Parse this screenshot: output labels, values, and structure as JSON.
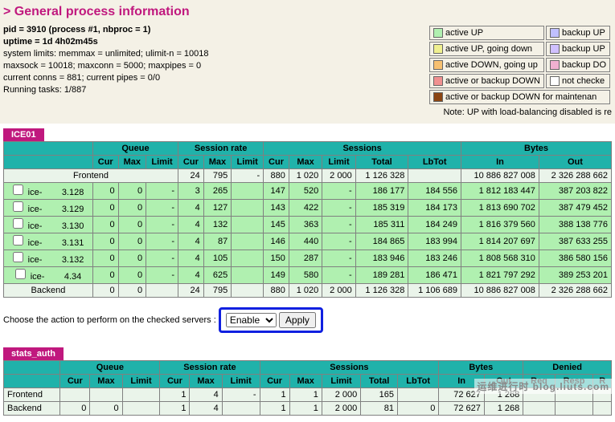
{
  "title": "> General process information",
  "info": {
    "pid_line": "pid = 3910 (process #1, nbproc = 1)",
    "uptime_line": "uptime = 1d 4h02m45s",
    "limits_line": "system limits: memmax = unlimited; ulimit-n = 10018",
    "sock_line": "maxsock = 10018; maxconn = 5000; maxpipes = 0",
    "conns_line": "current conns = 881; current pipes = 0/0",
    "tasks_line": "Running tasks: 1/887"
  },
  "legend": {
    "rows": [
      {
        "c1": "#b0f0b0",
        "l1": "active UP",
        "c2": "#c0c0ff",
        "l2": "backup UP"
      },
      {
        "c1": "#f0f090",
        "l1": "active UP, going down",
        "c2": "#d0c0ff",
        "l2": "backup UP"
      },
      {
        "c1": "#f7c070",
        "l1": "active DOWN, going up",
        "c2": "#f0b0d0",
        "l2": "backup DO"
      },
      {
        "c1": "#f09090",
        "l1": "active or backup DOWN",
        "c2": "#ffffff",
        "l2": "not checke"
      }
    ],
    "maint": {
      "color": "#8b4513",
      "label": "active or backup DOWN for maintenan"
    },
    "note": "Note: UP with load-balancing disabled is re"
  },
  "ice01": {
    "title": "ICE01",
    "group_headers": [
      "",
      "Queue",
      "Session rate",
      "Sessions",
      "Bytes"
    ],
    "sub_headers": [
      "",
      "Cur",
      "Max",
      "Limit",
      "Cur",
      "Max",
      "Limit",
      "Cur",
      "Max",
      "Limit",
      "Total",
      "LbTot",
      "In",
      "Out"
    ],
    "frontend": {
      "name": "Frontend",
      "srCur": "24",
      "srMax": "795",
      "srLim": "-",
      "sCur": "880",
      "sMax": "1 020",
      "sLim": "2 000",
      "sTot": "1 126 328",
      "lb": "",
      "bIn": "10 886 827 008",
      "bOut": "2 326 288 662"
    },
    "rows": [
      {
        "name": "ice-",
        "ip": "3.128",
        "qCur": "0",
        "qMax": "0",
        "qLim": "-",
        "srCur": "3",
        "srMax": "265",
        "srLim": "",
        "sCur": "147",
        "sMax": "520",
        "sLim": "-",
        "sTot": "186 177",
        "lb": "184 556",
        "bIn": "1 812 183 447",
        "bOut": "387 203 822"
      },
      {
        "name": "ice-",
        "ip": "3.129",
        "qCur": "0",
        "qMax": "0",
        "qLim": "-",
        "srCur": "4",
        "srMax": "127",
        "srLim": "",
        "sCur": "143",
        "sMax": "422",
        "sLim": "-",
        "sTot": "185 319",
        "lb": "184 173",
        "bIn": "1 813 690 702",
        "bOut": "387 479 452"
      },
      {
        "name": "ice-",
        "ip": "3.130",
        "qCur": "0",
        "qMax": "0",
        "qLim": "-",
        "srCur": "4",
        "srMax": "132",
        "srLim": "",
        "sCur": "145",
        "sMax": "363",
        "sLim": "-",
        "sTot": "185 311",
        "lb": "184 249",
        "bIn": "1 816 379 560",
        "bOut": "388 138 776"
      },
      {
        "name": "ice-",
        "ip": "3.131",
        "qCur": "0",
        "qMax": "0",
        "qLim": "-",
        "srCur": "4",
        "srMax": "87",
        "srLim": "",
        "sCur": "146",
        "sMax": "440",
        "sLim": "-",
        "sTot": "184 865",
        "lb": "183 994",
        "bIn": "1 814 207 697",
        "bOut": "387 633 255"
      },
      {
        "name": "ice-",
        "ip": "3.132",
        "qCur": "0",
        "qMax": "0",
        "qLim": "-",
        "srCur": "4",
        "srMax": "105",
        "srLim": "",
        "sCur": "150",
        "sMax": "287",
        "sLim": "-",
        "sTot": "183 946",
        "lb": "183 246",
        "bIn": "1 808 568 310",
        "bOut": "386 580 156"
      },
      {
        "name": "ice-",
        "ip": "4.34",
        "qCur": "0",
        "qMax": "0",
        "qLim": "-",
        "srCur": "4",
        "srMax": "625",
        "srLim": "",
        "sCur": "149",
        "sMax": "580",
        "sLim": "-",
        "sTot": "189 281",
        "lb": "186 471",
        "bIn": "1 821 797 292",
        "bOut": "389 253 201"
      }
    ],
    "backend": {
      "name": "Backend",
      "qCur": "0",
      "qMax": "0",
      "qLim": "",
      "srCur": "24",
      "srMax": "795",
      "srLim": "",
      "sCur": "880",
      "sMax": "1 020",
      "sLim": "2 000",
      "sTot": "1 126 328",
      "lb": "1 106 689",
      "bIn": "10 886 827 008",
      "bOut": "2 326 288 662"
    }
  },
  "action": {
    "label": "Choose the action to perform on the checked servers :",
    "options": [
      "Enable",
      "Disable"
    ],
    "apply": "Apply"
  },
  "stats_auth": {
    "title": "stats_auth",
    "group_headers": [
      "",
      "Queue",
      "Session rate",
      "Sessions",
      "Bytes",
      "Denied"
    ],
    "sub_headers": [
      "",
      "Cur",
      "Max",
      "Limit",
      "Cur",
      "Max",
      "Limit",
      "Cur",
      "Max",
      "Limit",
      "Total",
      "LbTot",
      "In",
      "Out",
      "Req",
      "Resp",
      "R"
    ],
    "frontend": {
      "name": "Frontend",
      "srCur": "1",
      "srMax": "4",
      "srLim": "-",
      "sCur": "1",
      "sMax": "1",
      "sLim": "2 000",
      "sTot": "165",
      "lb": "",
      "bIn": "72 627",
      "bOut": "1 268"
    },
    "backend": {
      "name": "Backend",
      "qCur": "0",
      "qMax": "0",
      "qLim": "",
      "srCur": "1",
      "srMax": "4",
      "srLim": "",
      "sCur": "1",
      "sMax": "1",
      "sLim": "2 000",
      "sTot": "81",
      "lb": "0",
      "bIn": "72 627",
      "bOut": "1 268"
    }
  },
  "watermark": "运维进行时 blog.liuts.com"
}
